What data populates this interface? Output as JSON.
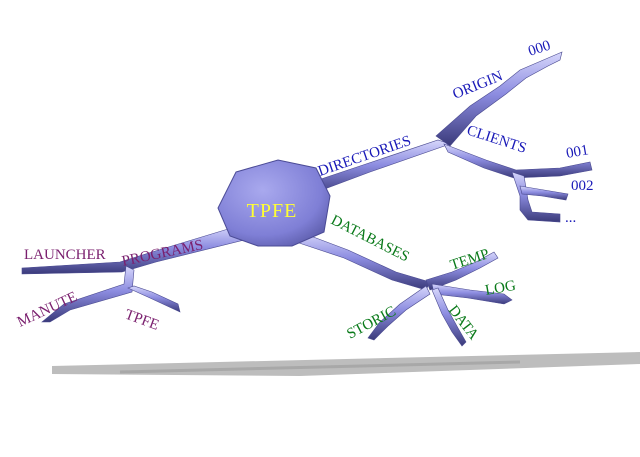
{
  "diagram": {
    "center_label": "TPFE",
    "labels": {
      "launcher": "LAUNCHER",
      "programs": "PROGRAMS",
      "manute": "MANUTE",
      "tpfe_sub": "TPFE",
      "directories": "DIRECTORIES",
      "origin": "ORIGIN",
      "n000": "000",
      "clients": "CLIENTS",
      "n001": "001",
      "n002": "002",
      "ellipsis": "...",
      "databases": "DATABASES",
      "temp": "TEMP",
      "log": "LOG",
      "storic": "STORIC",
      "data": "DATA"
    },
    "colors": {
      "branch": "#8c8ce0",
      "branch_light": "#c8c8f6",
      "branch_dark": "#3a3a7a",
      "shadow": "#b4b4b4",
      "purple": "#7a1f6e",
      "blue": "#1a1ab8",
      "green": "#0a7a1a",
      "center_text": "#ffff33"
    }
  }
}
